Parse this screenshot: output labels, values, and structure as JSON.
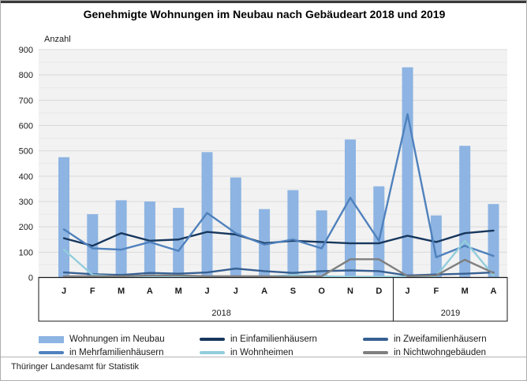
{
  "title": "Genehmigte Wohnungen im Neubau nach Gebäudeart 2018 und 2019",
  "footer": {
    "source": "Thüringer Landesamt für Statistik"
  },
  "legend": {
    "items": [
      {
        "label": "Wohnungen im Neubau",
        "type": "bar",
        "color": "#8db4e2"
      },
      {
        "label": "in Einfamilienhäusern",
        "type": "line",
        "color": "#17375d"
      },
      {
        "label": "in Zweifamilienhäusern",
        "type": "line",
        "color": "#376092"
      },
      {
        "label": "in Mehrfamilienhäusern",
        "type": "line",
        "color": "#4f81bd"
      },
      {
        "label": "in Wohnheimen",
        "type": "line",
        "color": "#92cddc"
      },
      {
        "label": "in Nichtwohngebäuden",
        "type": "line",
        "color": "#7f7f7f"
      }
    ]
  },
  "chart_data": {
    "type": "bar+line",
    "title": "Genehmigte Wohnungen im Neubau nach Gebäudeart 2018 und 2019",
    "ylabel": "Anzahl",
    "xlabel": "",
    "ylim": [
      0,
      900
    ],
    "ytick_step": 100,
    "grid": true,
    "legend_position": "bottom",
    "plot_bg": "#f2f2f2",
    "grid_color_major": "#d9d9d9",
    "grid_color_minor": "#e8e8e8",
    "categories": [
      "J",
      "F",
      "M",
      "A",
      "M",
      "J",
      "J",
      "A",
      "S",
      "O",
      "N",
      "D",
      "J",
      "F",
      "M",
      "A"
    ],
    "year_groups": [
      {
        "label": "2018",
        "count": 12
      },
      {
        "label": "2019",
        "count": 4
      }
    ],
    "yticks": [
      0,
      100,
      200,
      300,
      400,
      500,
      600,
      700,
      800,
      900
    ],
    "bar_series": {
      "name": "Wohnungen im Neubau",
      "color": "#8db4e2",
      "values": [
        475,
        250,
        305,
        300,
        275,
        495,
        395,
        270,
        345,
        265,
        545,
        360,
        830,
        245,
        520,
        290
      ]
    },
    "line_series": [
      {
        "name": "in Einfamilienhäusern",
        "color": "#17375d",
        "values": [
          155,
          125,
          175,
          145,
          150,
          180,
          170,
          135,
          145,
          140,
          135,
          135,
          165,
          140,
          175,
          185
        ]
      },
      {
        "name": "in Zweifamilienhäusern",
        "color": "#376092",
        "values": [
          20,
          13,
          10,
          18,
          15,
          20,
          35,
          25,
          18,
          25,
          28,
          25,
          8,
          12,
          15,
          20
        ]
      },
      {
        "name": "in Mehrfamilienhäusern",
        "color": "#4f81bd",
        "values": [
          190,
          115,
          110,
          140,
          105,
          255,
          175,
          130,
          150,
          115,
          315,
          145,
          645,
          80,
          125,
          85
        ]
      },
      {
        "name": "in Wohnheimen",
        "color": "#92cddc",
        "values": [
          110,
          10,
          3,
          3,
          3,
          5,
          3,
          3,
          10,
          5,
          3,
          3,
          3,
          5,
          145,
          8
        ]
      },
      {
        "name": "in Nichtwohngebäuden",
        "color": "#7f7f7f",
        "values": [
          5,
          5,
          5,
          8,
          8,
          5,
          5,
          5,
          3,
          5,
          72,
          72,
          5,
          8,
          70,
          18
        ]
      }
    ]
  }
}
